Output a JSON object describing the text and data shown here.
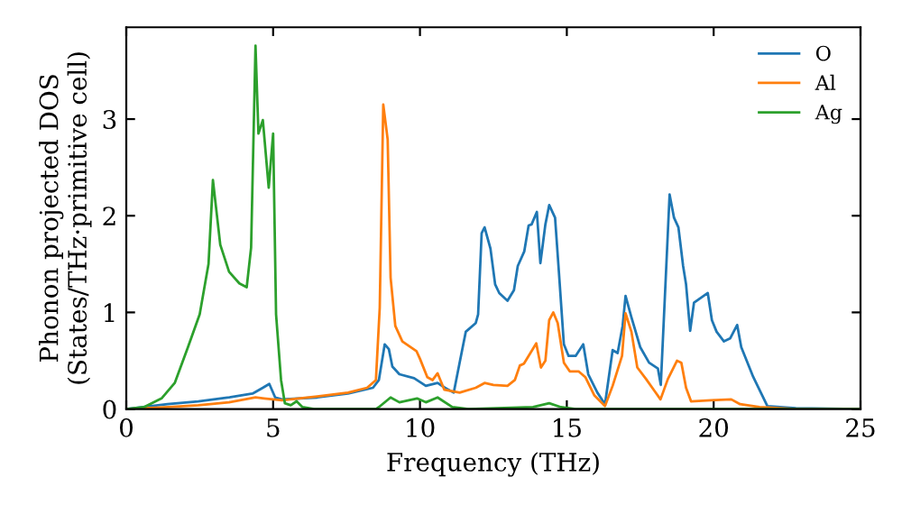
{
  "chart_data": {
    "type": "line",
    "xlabel": "Frequency (THz)",
    "ylabel": "Phonon projected DOS\n(States/THz·primitive cell)",
    "xlim": [
      0,
      25
    ],
    "ylim": [
      0,
      3.95
    ],
    "xticks": [
      0,
      5,
      10,
      15,
      20,
      25
    ],
    "yticks": [
      0,
      1,
      2,
      3
    ],
    "legend": "top right",
    "grid": false,
    "marker": "none",
    "line_style": "solid",
    "series": [
      {
        "name": "O",
        "color": "#1f77b4",
        "x": [
          0,
          1.4,
          2.45,
          3.5,
          4.3,
          4.65,
          4.87,
          5.07,
          5.3,
          6.5,
          7.55,
          8.4,
          8.6,
          8.8,
          8.94,
          9.06,
          9.3,
          9.8,
          10.0,
          10.2,
          10.6,
          10.85,
          11.15,
          11.35,
          11.56,
          11.9,
          11.98,
          12.1,
          12.2,
          12.4,
          12.56,
          12.7,
          12.98,
          13.2,
          13.33,
          13.55,
          13.7,
          13.8,
          13.98,
          14.1,
          14.27,
          14.4,
          14.6,
          14.73,
          14.9,
          15.06,
          15.3,
          15.56,
          15.73,
          16.04,
          16.3,
          16.56,
          16.73,
          16.9,
          17.0,
          17.2,
          17.5,
          17.8,
          18.1,
          18.2,
          18.5,
          18.65,
          18.8,
          18.96,
          19.06,
          19.2,
          19.33,
          19.8,
          19.94,
          20.1,
          20.35,
          20.56,
          20.8,
          20.94,
          21.35,
          21.83,
          22.8,
          25
        ],
        "values": [
          0,
          0.05,
          0.08,
          0.12,
          0.16,
          0.22,
          0.26,
          0.12,
          0.1,
          0.12,
          0.16,
          0.22,
          0.3,
          0.67,
          0.62,
          0.44,
          0.36,
          0.32,
          0.28,
          0.24,
          0.27,
          0.22,
          0.17,
          0.48,
          0.8,
          0.89,
          0.98,
          1.82,
          1.88,
          1.66,
          1.29,
          1.2,
          1.12,
          1.23,
          1.48,
          1.63,
          1.9,
          1.91,
          2.04,
          1.51,
          1.91,
          2.11,
          1.98,
          1.42,
          0.67,
          0.55,
          0.55,
          0.67,
          0.36,
          0.17,
          0.05,
          0.61,
          0.58,
          0.86,
          1.17,
          0.95,
          0.64,
          0.48,
          0.42,
          0.25,
          2.22,
          1.98,
          1.88,
          1.48,
          1.29,
          0.81,
          1.1,
          1.2,
          0.92,
          0.8,
          0.7,
          0.73,
          0.87,
          0.64,
          0.33,
          0.03,
          0.01,
          0
        ]
      },
      {
        "name": "Al",
        "color": "#ff7f0e",
        "x": [
          0,
          1.45,
          2.45,
          3.5,
          4.4,
          4.7,
          5.3,
          6.5,
          7.55,
          8.2,
          8.5,
          8.63,
          8.75,
          8.9,
          9.0,
          9.16,
          9.4,
          9.88,
          10.0,
          10.25,
          10.43,
          10.6,
          10.83,
          11.35,
          11.9,
          12.2,
          12.5,
          12.98,
          13.23,
          13.4,
          13.54,
          13.96,
          14.12,
          14.27,
          14.4,
          14.54,
          14.69,
          14.9,
          15.1,
          15.4,
          15.63,
          15.94,
          16.3,
          16.56,
          16.88,
          17.0,
          17.2,
          17.4,
          17.7,
          17.98,
          18.19,
          18.44,
          18.75,
          18.9,
          19.06,
          19.23,
          19.9,
          20.6,
          20.9,
          21.56,
          22.8,
          25
        ],
        "values": [
          0,
          0.02,
          0.04,
          0.07,
          0.12,
          0.11,
          0.09,
          0.13,
          0.17,
          0.22,
          0.3,
          1.05,
          3.15,
          2.79,
          1.36,
          0.86,
          0.7,
          0.6,
          0.52,
          0.33,
          0.3,
          0.37,
          0.2,
          0.17,
          0.22,
          0.27,
          0.25,
          0.24,
          0.3,
          0.45,
          0.47,
          0.68,
          0.43,
          0.5,
          0.92,
          1.0,
          0.89,
          0.48,
          0.39,
          0.39,
          0.33,
          0.14,
          0.03,
          0.24,
          0.55,
          0.99,
          0.8,
          0.43,
          0.31,
          0.19,
          0.1,
          0.31,
          0.5,
          0.48,
          0.22,
          0.08,
          0.09,
          0.1,
          0.05,
          0.02,
          0,
          0
        ]
      },
      {
        "name": "Ag",
        "color": "#2ca02c",
        "x": [
          0,
          0.6,
          1.2,
          1.65,
          2.1,
          2.5,
          2.8,
          2.95,
          3.2,
          3.5,
          3.85,
          4.1,
          4.25,
          4.4,
          4.5,
          4.65,
          4.85,
          5.0,
          5.1,
          5.27,
          5.4,
          5.6,
          5.8,
          6.0,
          6.4,
          8.5,
          8.6,
          9.0,
          9.3,
          9.9,
          10.2,
          10.6,
          11.1,
          11.65,
          13.85,
          14.4,
          14.8,
          15.3,
          25
        ],
        "values": [
          0,
          0.02,
          0.11,
          0.27,
          0.64,
          0.98,
          1.5,
          2.37,
          1.7,
          1.42,
          1.3,
          1.26,
          1.67,
          3.76,
          2.85,
          2.99,
          2.29,
          2.85,
          0.98,
          0.3,
          0.06,
          0.04,
          0.08,
          0.02,
          0,
          0,
          0.02,
          0.12,
          0.07,
          0.11,
          0.07,
          0.12,
          0.02,
          0,
          0.02,
          0.06,
          0.02,
          0,
          0
        ]
      }
    ]
  }
}
